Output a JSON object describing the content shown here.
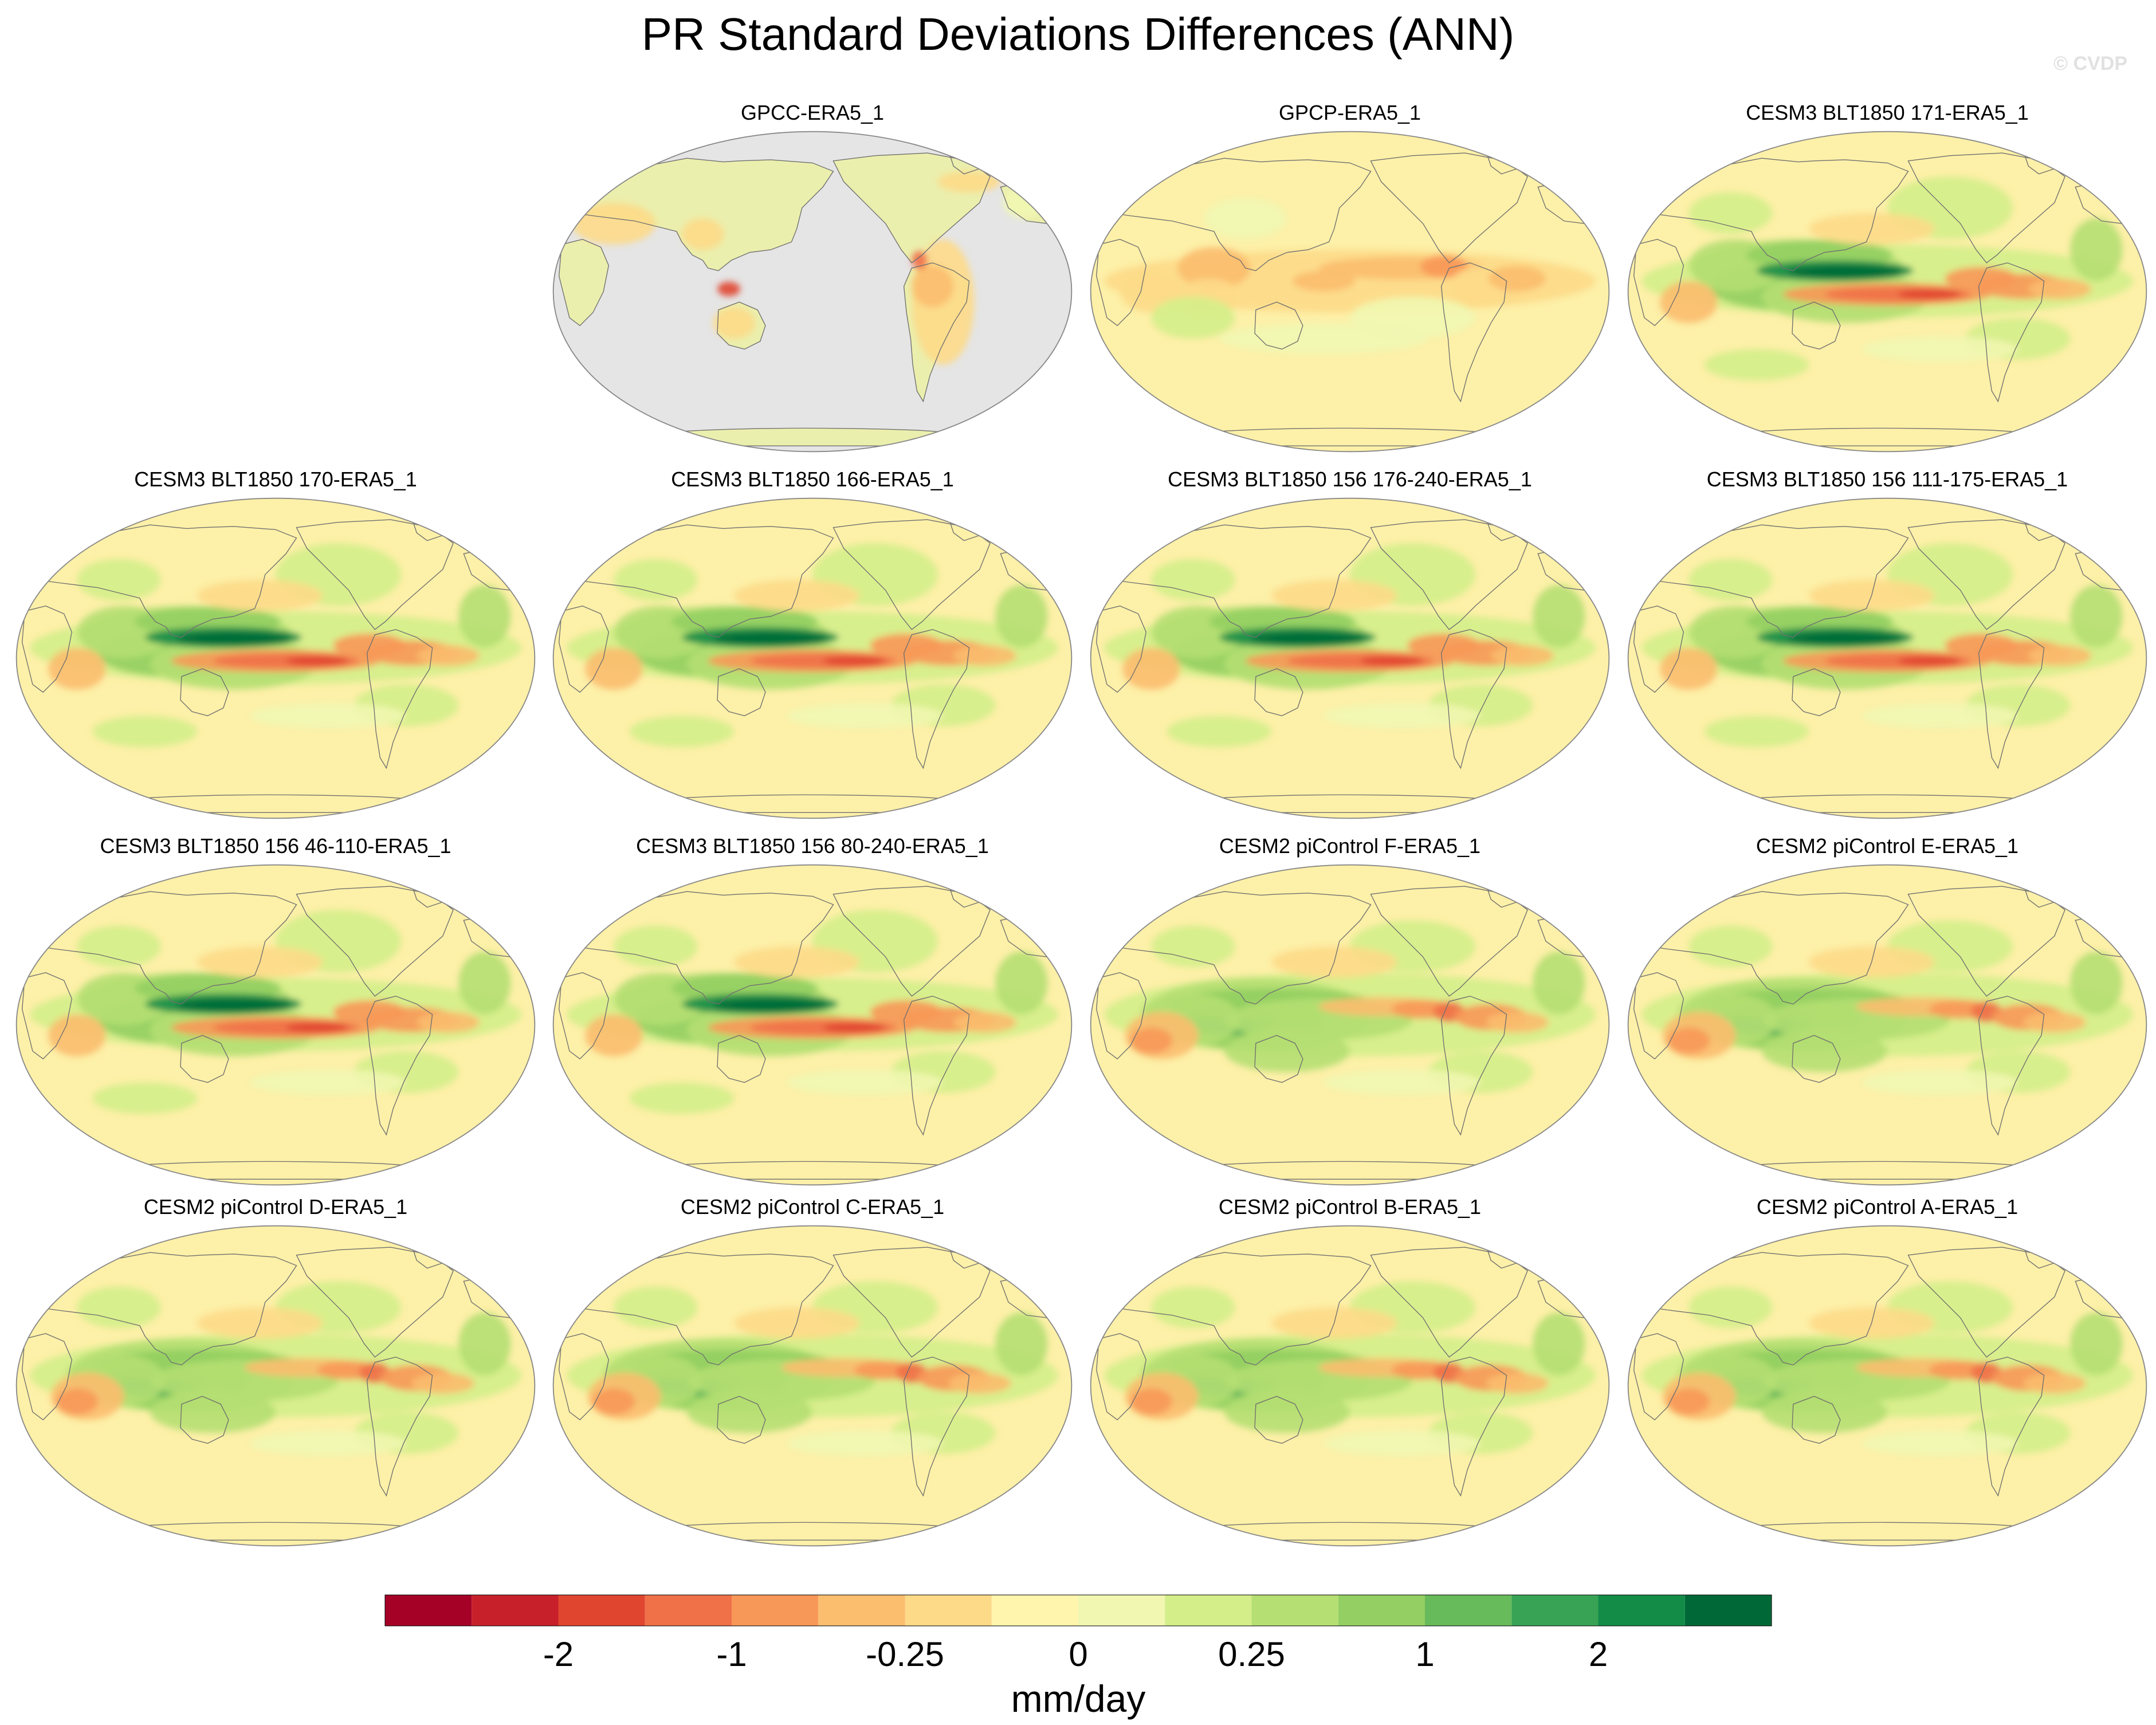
{
  "figure": {
    "title": "PR Standard Deviations Differences (ANN)",
    "watermark": "© CVDP"
  },
  "panels": [
    {
      "title": "GPCC-ERA5_1",
      "type": "land-only"
    },
    {
      "title": "GPCP-ERA5_1",
      "type": "obs"
    },
    {
      "title": "CESM3 BLT1850 171-ERA5_1",
      "type": "cesm3"
    },
    {
      "title": "CESM3 BLT1850 170-ERA5_1",
      "type": "cesm3"
    },
    {
      "title": "CESM3 BLT1850 166-ERA5_1",
      "type": "cesm3"
    },
    {
      "title": "CESM3 BLT1850 156 176-240-ERA5_1",
      "type": "cesm3"
    },
    {
      "title": "CESM3 BLT1850 156 111-175-ERA5_1",
      "type": "cesm3"
    },
    {
      "title": "CESM3 BLT1850 156 46-110-ERA5_1",
      "type": "cesm3"
    },
    {
      "title": "CESM3 BLT1850 156 80-240-ERA5_1",
      "type": "cesm3"
    },
    {
      "title": "CESM2 piControl F-ERA5_1",
      "type": "cesm2"
    },
    {
      "title": "CESM2 piControl E-ERA5_1",
      "type": "cesm2"
    },
    {
      "title": "CESM2 piControl D-ERA5_1",
      "type": "cesm2"
    },
    {
      "title": "CESM2 piControl C-ERA5_1",
      "type": "cesm2"
    },
    {
      "title": "CESM2 piControl B-ERA5_1",
      "type": "cesm2"
    },
    {
      "title": "CESM2 piControl A-ERA5_1",
      "type": "cesm2"
    }
  ],
  "colorbar": {
    "units": "mm/day",
    "tick_labels": [
      "-2",
      "-1",
      "-0.25",
      "0",
      "0.25",
      "1",
      "2"
    ],
    "colors": [
      "#a50026",
      "#c8202a",
      "#e04530",
      "#f07048",
      "#f89858",
      "#fbbd6e",
      "#fdda88",
      "#fff5ad",
      "#f1f7b1",
      "#d4ee8a",
      "#b5df72",
      "#93cf62",
      "#68bb5a",
      "#38a355",
      "#138c48",
      "#006837"
    ]
  },
  "map_colors": {
    "ocean_neutral": "#fdf0a8",
    "land_fill": "#ebefad",
    "missing": "#e5e5e5",
    "coastline": "#707070"
  }
}
